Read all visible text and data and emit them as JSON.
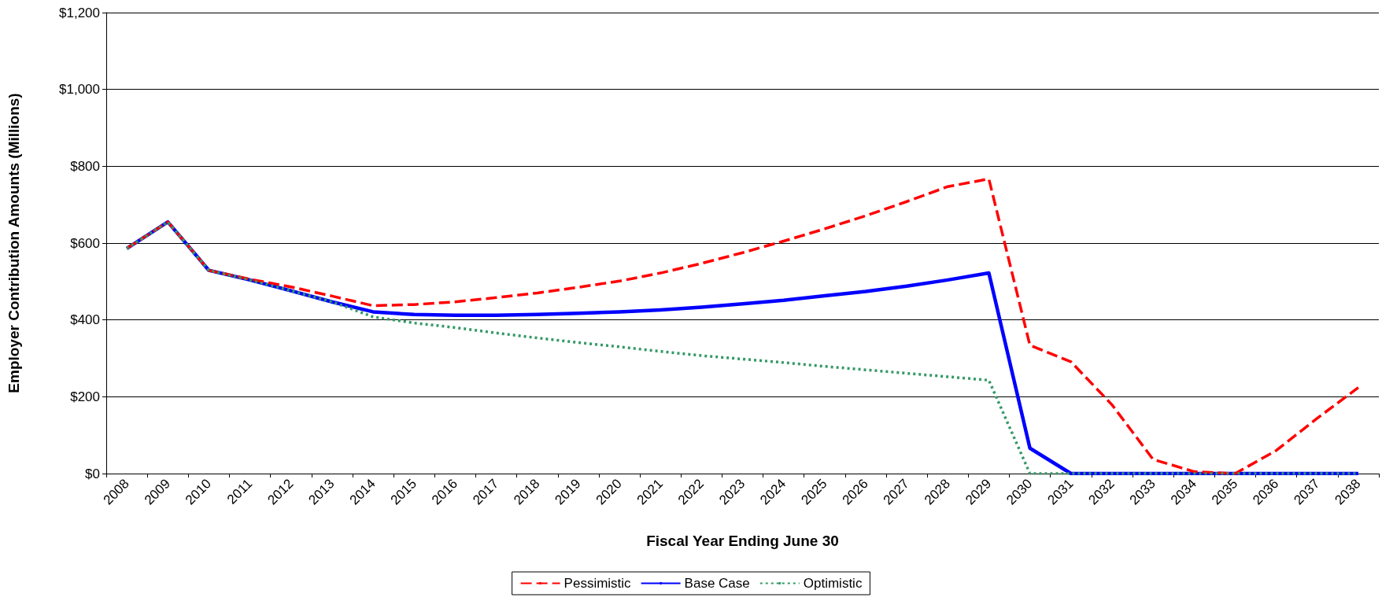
{
  "chart_data": {
    "type": "line",
    "xlabel": "Fiscal Year Ending June 30",
    "ylabel": "Employer Contribution Amounts (Millions)",
    "categories": [
      "2008",
      "2009",
      "2010",
      "2011",
      "2012",
      "2013",
      "2014",
      "2015",
      "2016",
      "2017",
      "2018",
      "2019",
      "2020",
      "2021",
      "2022",
      "2023",
      "2024",
      "2025",
      "2026",
      "2027",
      "2028",
      "2029",
      "2030",
      "2031",
      "2032",
      "2033",
      "2034",
      "2035",
      "2036",
      "2037",
      "2038"
    ],
    "series": [
      {
        "name": "Pessimistic",
        "color": "#ff0000",
        "line_style": "dashed",
        "values": [
          586,
          655,
          529,
          506,
          486,
          462,
          437,
          440,
          447,
          458,
          470,
          485,
          501,
          522,
          547,
          575,
          605,
          637,
          671,
          708,
          747,
          767,
          334,
          291,
          179,
          37,
          5,
          0,
          60,
          144,
          224
        ]
      },
      {
        "name": "Base Case",
        "color": "#0000ff",
        "line_style": "solid",
        "values": [
          586,
          655,
          529,
          504,
          476,
          447,
          421,
          414,
          412,
          412,
          414,
          417,
          421,
          426,
          433,
          442,
          451,
          463,
          474,
          488,
          504,
          522,
          66,
          0,
          0,
          0,
          0,
          0,
          0,
          0,
          0
        ]
      },
      {
        "name": "Optimistic",
        "color": "#339966",
        "line_style": "dotted",
        "values": [
          586,
          655,
          529,
          504,
          476,
          447,
          408,
          392,
          380,
          366,
          353,
          341,
          330,
          318,
          307,
          298,
          289,
          279,
          270,
          261,
          252,
          243,
          0,
          0,
          0,
          0,
          0,
          0,
          0,
          0,
          0
        ]
      }
    ],
    "ylim": [
      0,
      1200
    ],
    "yticks": [
      {
        "value": 0,
        "label": "$0"
      },
      {
        "value": 200,
        "label": "$200"
      },
      {
        "value": 400,
        "label": "$400"
      },
      {
        "value": 600,
        "label": "$600"
      },
      {
        "value": 800,
        "label": "$800"
      },
      {
        "value": 1000,
        "label": "$1,000"
      },
      {
        "value": 1200,
        "label": "$1,200"
      }
    ],
    "grid": "y",
    "legend": "bottom",
    "marker": "none"
  }
}
